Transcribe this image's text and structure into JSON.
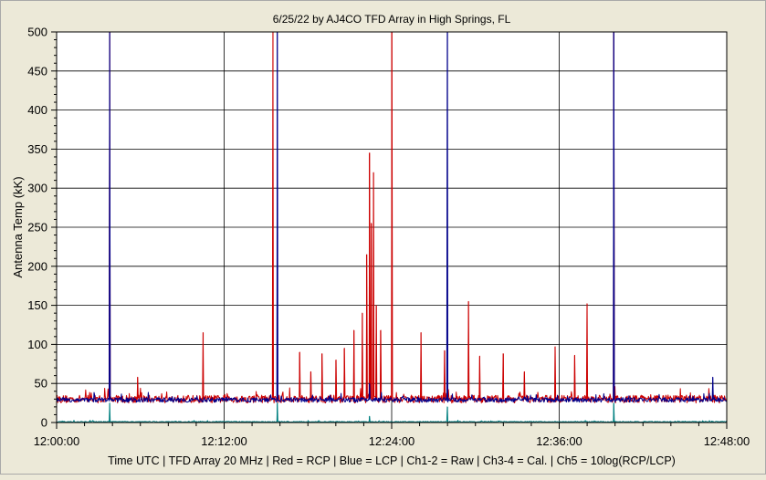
{
  "chart_data": {
    "type": "line",
    "title": "6/25/22  by  AJ4CO TFD Array  in  High Springs, FL",
    "xlabel": "Time UTC | TFD Array 20 MHz | Red = RCP | Blue = LCP | Ch1-2 = Raw | Ch3-4 = Cal. | Ch5 = 10log(RCP/LCP)",
    "ylabel": "Antenna Temp (kK)",
    "x_range_minutes": [
      0,
      48
    ],
    "x_tick_minutes": [
      0,
      12,
      24,
      36,
      48
    ],
    "x_tick_labels": [
      "12:00:00",
      "12:12:00",
      "12:24:00",
      "12:36:00",
      "12:48:00"
    ],
    "ylim": [
      0,
      500
    ],
    "y_ticks": [
      0,
      50,
      100,
      150,
      200,
      250,
      300,
      350,
      400,
      450,
      500
    ],
    "grid": true,
    "series": [
      {
        "color": "#cc0000",
        "baseline": 30,
        "noise": 5,
        "points_minutes": [
          [
            3.8,
            500
          ],
          [
            10.5,
            115
          ],
          [
            5.8,
            58
          ],
          [
            15.5,
            500
          ],
          [
            17.4,
            90
          ],
          [
            18.2,
            65
          ],
          [
            19.0,
            88
          ],
          [
            20.0,
            80
          ],
          [
            20.6,
            95
          ],
          [
            21.3,
            118
          ],
          [
            21.9,
            140
          ],
          [
            22.2,
            215
          ],
          [
            22.4,
            345
          ],
          [
            22.55,
            255
          ],
          [
            22.7,
            320
          ],
          [
            22.9,
            150
          ],
          [
            23.2,
            118
          ],
          [
            24.0,
            500
          ],
          [
            26.1,
            115
          ],
          [
            27.8,
            92
          ],
          [
            29.5,
            155
          ],
          [
            30.3,
            85
          ],
          [
            32.0,
            88
          ],
          [
            33.5,
            65
          ],
          [
            35.7,
            97
          ],
          [
            37.1,
            86
          ],
          [
            38.0,
            152
          ],
          [
            39.9,
            500
          ]
        ]
      },
      {
        "color": "#00008b",
        "baseline": 29,
        "noise": 3,
        "points_minutes": [
          [
            3.8,
            500
          ],
          [
            15.8,
            500
          ],
          [
            22.4,
            50
          ],
          [
            28.0,
            500
          ],
          [
            39.9,
            500
          ],
          [
            47.0,
            58
          ]
        ]
      },
      {
        "color": "#008080",
        "baseline": 1,
        "noise": 0.6,
        "points_minutes": [
          [
            3.8,
            25
          ],
          [
            15.8,
            25
          ],
          [
            22.4,
            8
          ],
          [
            28.0,
            20
          ],
          [
            39.9,
            25
          ]
        ]
      }
    ]
  }
}
